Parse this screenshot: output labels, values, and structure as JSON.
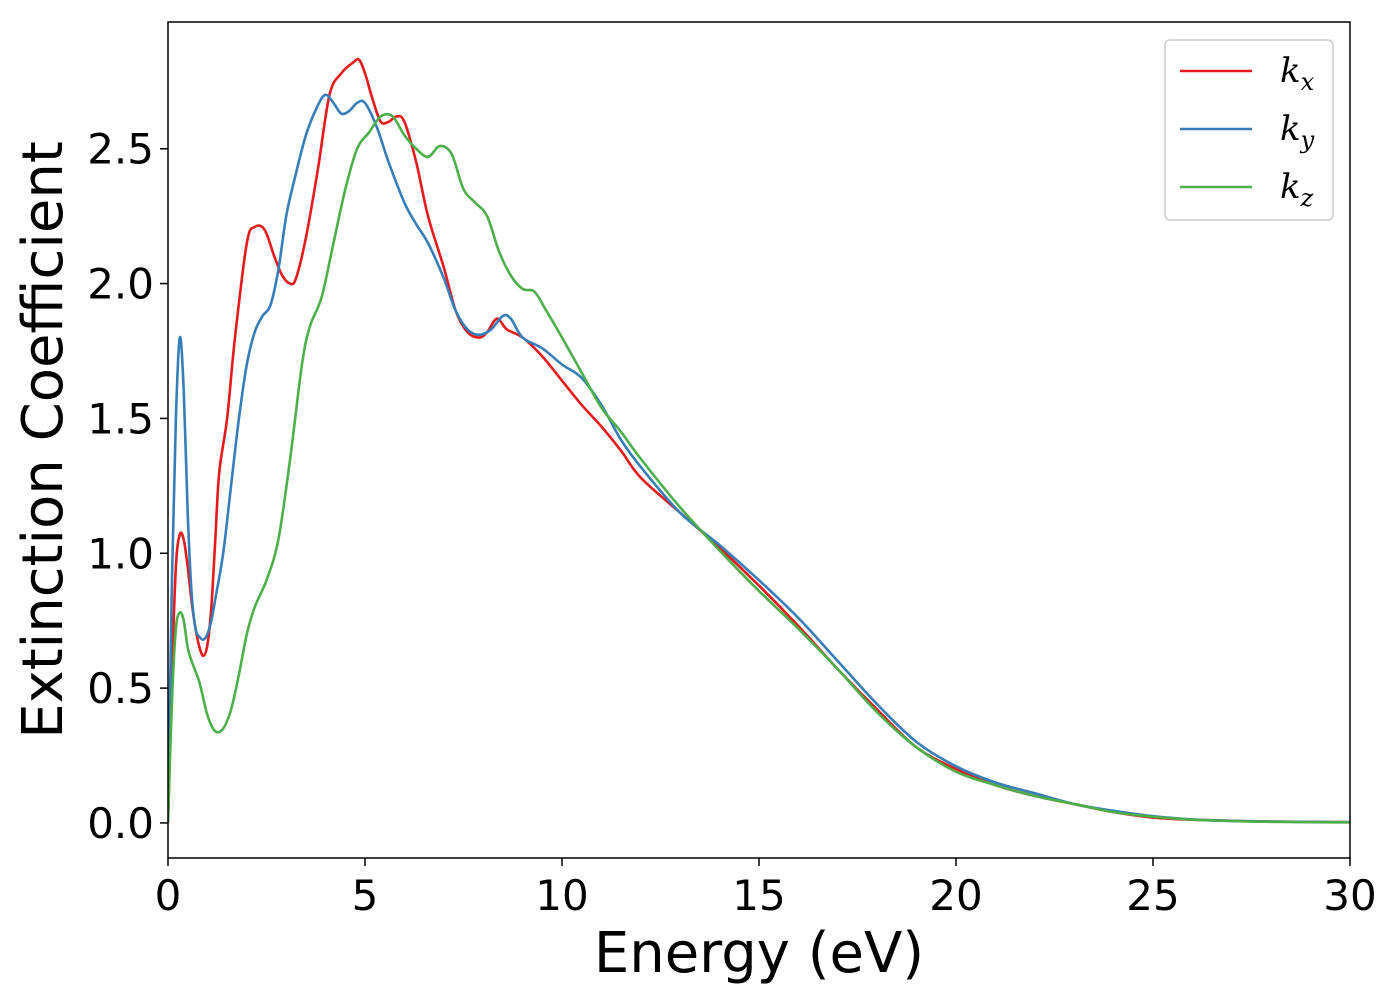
{
  "chart_data": {
    "type": "line",
    "title": "",
    "xlabel": "Energy (eV)",
    "ylabel": "Extinction Coefficient",
    "xlim": [
      0,
      30
    ],
    "ylim": [
      -0.13,
      2.97
    ],
    "xticks": [
      "0",
      "5",
      "10",
      "15",
      "20",
      "25",
      "30"
    ],
    "yticks": [
      "0.0",
      "0.5",
      "1.0",
      "1.5",
      "2.0",
      "2.5"
    ],
    "grid": false,
    "legend_position": "top-right",
    "series": [
      {
        "name": "k",
        "subscript": "x",
        "color": "#e41a1c",
        "x": [
          0,
          0.1,
          0.2,
          0.3,
          0.4,
          0.5,
          0.6,
          0.7,
          0.8,
          0.9,
          1.0,
          1.1,
          1.2,
          1.3,
          1.5,
          1.7,
          2.0,
          2.2,
          2.45,
          2.7,
          2.9,
          3.1,
          3.25,
          3.5,
          3.8,
          4.1,
          4.4,
          4.7,
          4.85,
          5.0,
          5.2,
          5.4,
          5.6,
          5.8,
          6.0,
          6.3,
          6.6,
          7.0,
          7.3,
          7.6,
          7.9,
          8.1,
          8.35,
          8.6,
          9.0,
          9.5,
          10.0,
          10.5,
          11.0,
          11.5,
          12.0,
          13.0,
          14.0,
          15.0,
          16.0,
          17.0,
          18.0,
          19.0,
          20.0,
          21.0,
          22.0,
          23.0,
          24.0,
          25.0,
          26.0,
          27.0,
          28.0,
          30.0
        ],
        "y": [
          0.0,
          0.55,
          0.95,
          1.07,
          1.05,
          0.95,
          0.82,
          0.72,
          0.65,
          0.62,
          0.66,
          0.8,
          1.05,
          1.3,
          1.5,
          1.8,
          2.15,
          2.21,
          2.2,
          2.1,
          2.03,
          2.0,
          2.02,
          2.17,
          2.42,
          2.7,
          2.78,
          2.82,
          2.83,
          2.78,
          2.68,
          2.6,
          2.6,
          2.62,
          2.6,
          2.45,
          2.25,
          2.06,
          1.9,
          1.82,
          1.8,
          1.82,
          1.87,
          1.83,
          1.8,
          1.73,
          1.64,
          1.55,
          1.47,
          1.38,
          1.28,
          1.15,
          1.02,
          0.88,
          0.73,
          0.57,
          0.42,
          0.28,
          0.2,
          0.14,
          0.1,
          0.07,
          0.04,
          0.02,
          0.012,
          0.008,
          0.005,
          0.003
        ]
      },
      {
        "name": "k",
        "subscript": "y",
        "color": "#377eb8",
        "x": [
          0,
          0.1,
          0.2,
          0.3,
          0.4,
          0.5,
          0.6,
          0.7,
          0.8,
          0.9,
          1.0,
          1.1,
          1.2,
          1.4,
          1.6,
          1.8,
          2.0,
          2.2,
          2.4,
          2.6,
          2.8,
          3.0,
          3.2,
          3.5,
          3.8,
          4.0,
          4.2,
          4.4,
          4.6,
          4.8,
          5.0,
          5.3,
          5.6,
          6.0,
          6.3,
          6.6,
          7.0,
          7.3,
          7.6,
          7.9,
          8.2,
          8.5,
          8.7,
          9.0,
          9.5,
          10.0,
          10.5,
          11.0,
          11.5,
          12.0,
          13.0,
          14.0,
          15.0,
          16.0,
          17.0,
          18.0,
          19.0,
          20.0,
          21.0,
          22.0,
          23.0,
          24.0,
          25.0,
          26.0,
          27.0,
          28.0,
          30.0
        ],
        "y": [
          0.0,
          0.9,
          1.5,
          1.8,
          1.6,
          1.15,
          0.85,
          0.72,
          0.69,
          0.68,
          0.7,
          0.75,
          0.83,
          1.0,
          1.25,
          1.5,
          1.7,
          1.82,
          1.88,
          1.92,
          2.05,
          2.25,
          2.38,
          2.55,
          2.66,
          2.7,
          2.67,
          2.63,
          2.64,
          2.67,
          2.67,
          2.58,
          2.45,
          2.3,
          2.22,
          2.15,
          2.02,
          1.9,
          1.83,
          1.81,
          1.83,
          1.88,
          1.87,
          1.8,
          1.76,
          1.7,
          1.65,
          1.55,
          1.42,
          1.32,
          1.15,
          1.03,
          0.9,
          0.76,
          0.6,
          0.44,
          0.3,
          0.21,
          0.15,
          0.11,
          0.07,
          0.045,
          0.025,
          0.013,
          0.008,
          0.005,
          0.003
        ]
      },
      {
        "name": "k",
        "subscript": "z",
        "color": "#4daf4a",
        "x": [
          0,
          0.1,
          0.2,
          0.3,
          0.4,
          0.5,
          0.6,
          0.8,
          1.0,
          1.2,
          1.4,
          1.6,
          1.8,
          2.0,
          2.2,
          2.5,
          2.8,
          3.1,
          3.4,
          3.6,
          3.9,
          4.2,
          4.5,
          4.8,
          5.1,
          5.4,
          5.7,
          6.0,
          6.3,
          6.6,
          6.9,
          7.2,
          7.5,
          7.8,
          8.1,
          8.4,
          8.7,
          9.0,
          9.3,
          9.6,
          10.0,
          10.5,
          11.0,
          11.5,
          12.0,
          13.0,
          14.0,
          15.0,
          16.0,
          17.0,
          18.0,
          19.0,
          20.0,
          21.0,
          22.0,
          23.0,
          24.0,
          25.0,
          26.0,
          27.0,
          28.0,
          30.0
        ],
        "y": [
          0.0,
          0.45,
          0.72,
          0.78,
          0.75,
          0.65,
          0.6,
          0.52,
          0.4,
          0.34,
          0.35,
          0.42,
          0.55,
          0.7,
          0.8,
          0.9,
          1.05,
          1.35,
          1.7,
          1.84,
          1.95,
          2.15,
          2.35,
          2.5,
          2.56,
          2.62,
          2.62,
          2.55,
          2.5,
          2.47,
          2.51,
          2.48,
          2.35,
          2.3,
          2.25,
          2.12,
          2.03,
          1.98,
          1.97,
          1.9,
          1.8,
          1.67,
          1.54,
          1.45,
          1.35,
          1.17,
          1.01,
          0.86,
          0.72,
          0.57,
          0.41,
          0.28,
          0.19,
          0.14,
          0.1,
          0.07,
          0.04,
          0.023,
          0.012,
          0.007,
          0.004,
          0.002
        ]
      }
    ]
  }
}
